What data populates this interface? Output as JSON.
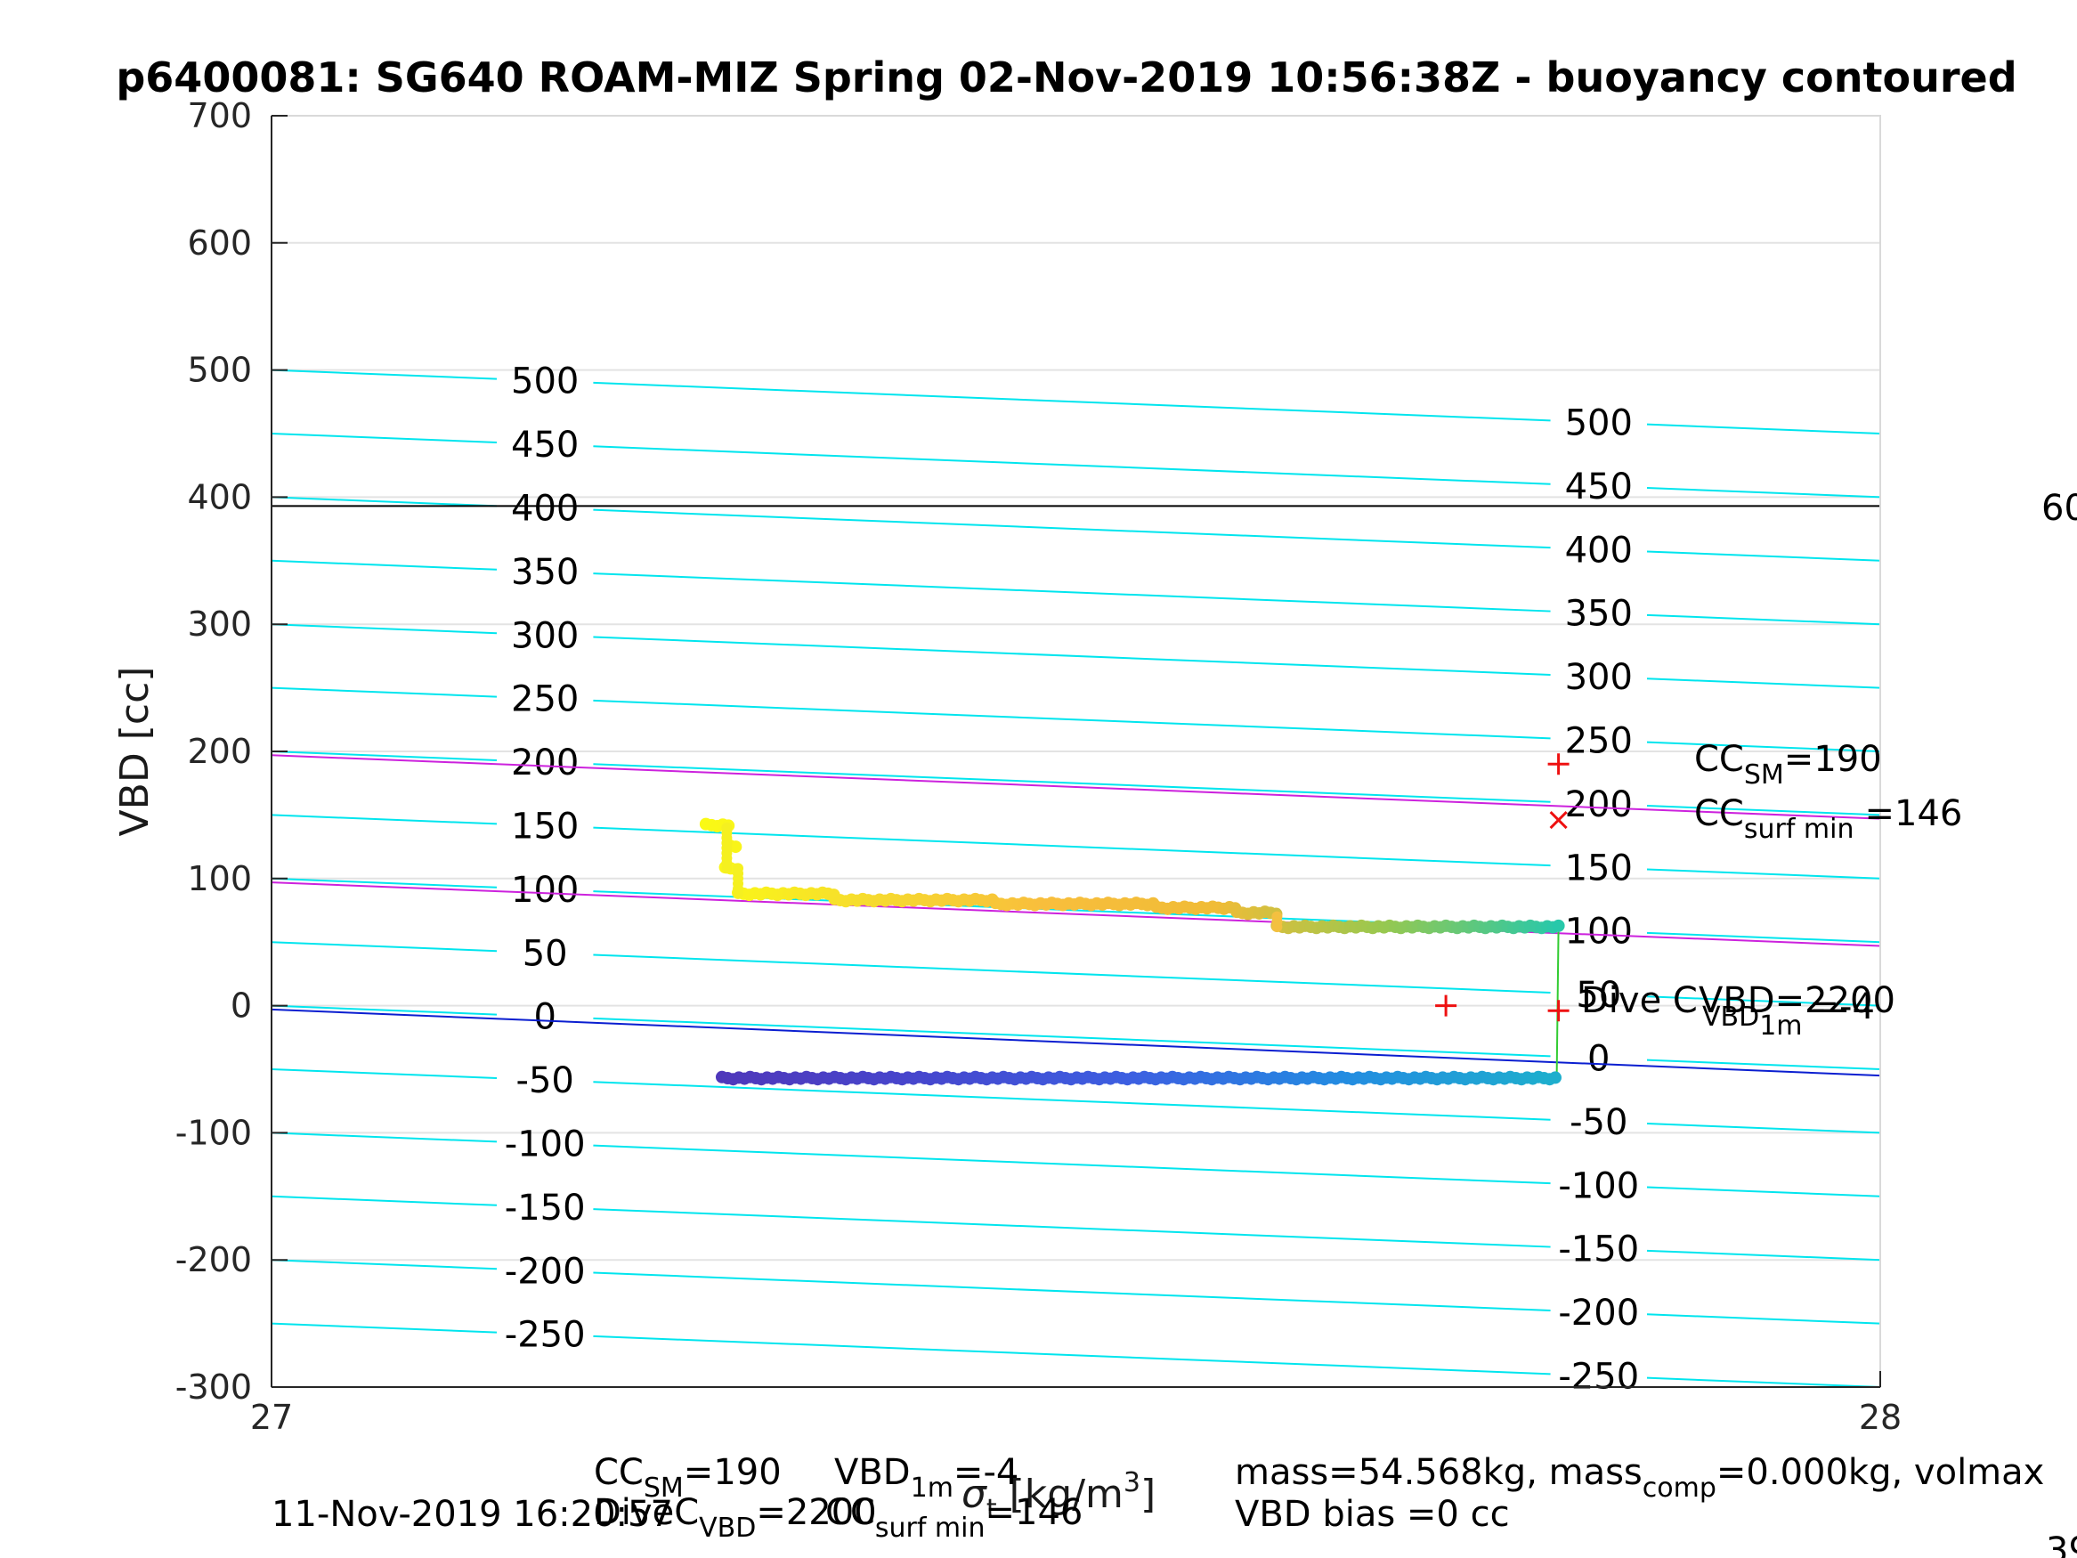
{
  "chart_data": {
    "type": "scatter",
    "title": "p6400081: SG640 ROAM-MIZ Spring 02-Nov-2019 10:56:38Z - buoyancy contoured",
    "xlabel_parts": {
      "pre": "σ",
      "sub": "t",
      "post": " [kg/m",
      "sup": "3",
      "close": "]"
    },
    "ylabel": "VBD [cc]",
    "xlim": [
      27,
      28
    ],
    "ylim": [
      -300,
      700
    ],
    "x_ticks": [
      "27",
      "28"
    ],
    "y_ticks": [
      "-300",
      "-200",
      "-100",
      "0",
      "100",
      "200",
      "300",
      "400",
      "500",
      "600",
      "700"
    ],
    "grid": true,
    "contour_levels": [
      -250,
      -200,
      -150,
      -100,
      -50,
      0,
      50,
      100,
      150,
      200,
      250,
      300,
      350,
      400,
      450,
      500
    ],
    "contour_slope_cc_per_unit": -50,
    "contour_label_text": {
      "left": [
        "-250",
        "-200",
        "-150",
        "-100",
        "-50",
        "0",
        "50",
        "100",
        "150",
        "200",
        "250",
        "300",
        "350",
        "400",
        "450",
        "500"
      ],
      "right": [
        "-250",
        "-200",
        "-150",
        "-100",
        "-50",
        "0",
        "50",
        "100",
        "150",
        "200",
        "250",
        "300",
        "350",
        "400",
        "450",
        "500"
      ]
    },
    "contour_color": "#00e5ee",
    "highlight_lines": [
      {
        "name": "CC_SM line",
        "y_at_27": 197,
        "y_at_28": 147,
        "color": "#cc22dd"
      },
      {
        "name": "CC_surf_min line",
        "y_at_27": 97,
        "y_at_28": 47,
        "color": "#cc22dd"
      },
      {
        "name": "zero buoyancy line",
        "y_at_27": -3,
        "y_at_28": -55,
        "color": "#0a1ed0"
      }
    ],
    "horizontal_line": {
      "y": 393,
      "color": "#000000"
    },
    "series": [
      {
        "name": "climb",
        "colormap": "yellow-orange-green",
        "segments": [
          {
            "x0": 27.27,
            "x1": 27.285,
            "y": 142
          },
          {
            "x0": 27.285,
            "x1": 27.29,
            "y": 125
          },
          {
            "x0": 27.282,
            "x1": 27.29,
            "y": 108
          },
          {
            "x0": 27.29,
            "x1": 27.35,
            "y": 88
          },
          {
            "x0": 27.35,
            "x1": 27.45,
            "y": 83
          },
          {
            "x0": 27.45,
            "x1": 27.55,
            "y": 80
          },
          {
            "x0": 27.55,
            "x1": 27.6,
            "y": 77
          },
          {
            "x0": 27.6,
            "x1": 27.625,
            "y": 73
          },
          {
            "x0": 27.625,
            "x1": 27.8,
            "y": 62
          }
        ]
      },
      {
        "name": "dive",
        "colormap": "purple-blue",
        "segments": [
          {
            "x0": 27.28,
            "x1": 27.8,
            "y": -57
          }
        ]
      }
    ],
    "connector": {
      "x": 27.8,
      "y_top": 62,
      "y_bottom": -57,
      "color": "#33cc33"
    },
    "markers": [
      {
        "type": "plus",
        "x": 27.8,
        "y": 190,
        "color": "#ee1111"
      },
      {
        "type": "x",
        "x": 27.8,
        "y": 146,
        "color": "#ee1111"
      },
      {
        "type": "plus",
        "x": 27.73,
        "y": 0,
        "color": "#ee1111"
      },
      {
        "type": "plus",
        "x": 27.8,
        "y": -4,
        "color": "#ee1111"
      }
    ],
    "annotations": {
      "cc_sm": {
        "main": "CC",
        "sub": "SM",
        "tail": "=190"
      },
      "cc_surf_min": {
        "main": "CC",
        "sub": "surf min",
        "tail": "=146"
      },
      "dive_c_vbd": "Dive C",
      "vbd_eq": "VBD=2200",
      "vbd_1m": {
        "main": "VBD",
        "sub": "1m",
        "tail": "=-4"
      },
      "right_edge_top": "60",
      "right_edge_bottom": "39"
    },
    "footer": {
      "timestamp": "11-Nov-2019 16:20:57",
      "line1_cc": {
        "main": "CC",
        "sub": "SM",
        "tail": "=190"
      },
      "line1_vbd": {
        "main": "VBD",
        "sub": "1m",
        "tail": "=-4"
      },
      "line2_dive": {
        "main": "DiveC",
        "sub": "VBD",
        "tail": "=2200"
      },
      "line2_cc": {
        "main": "CC",
        "sub": "surf min",
        "tail": "=146"
      },
      "mass": {
        "pre": "mass=54.568kg, mass",
        "sub": "comp",
        "post": "=0.000kg, volmax"
      },
      "vbd_bias": "VBD bias =0 cc"
    }
  }
}
